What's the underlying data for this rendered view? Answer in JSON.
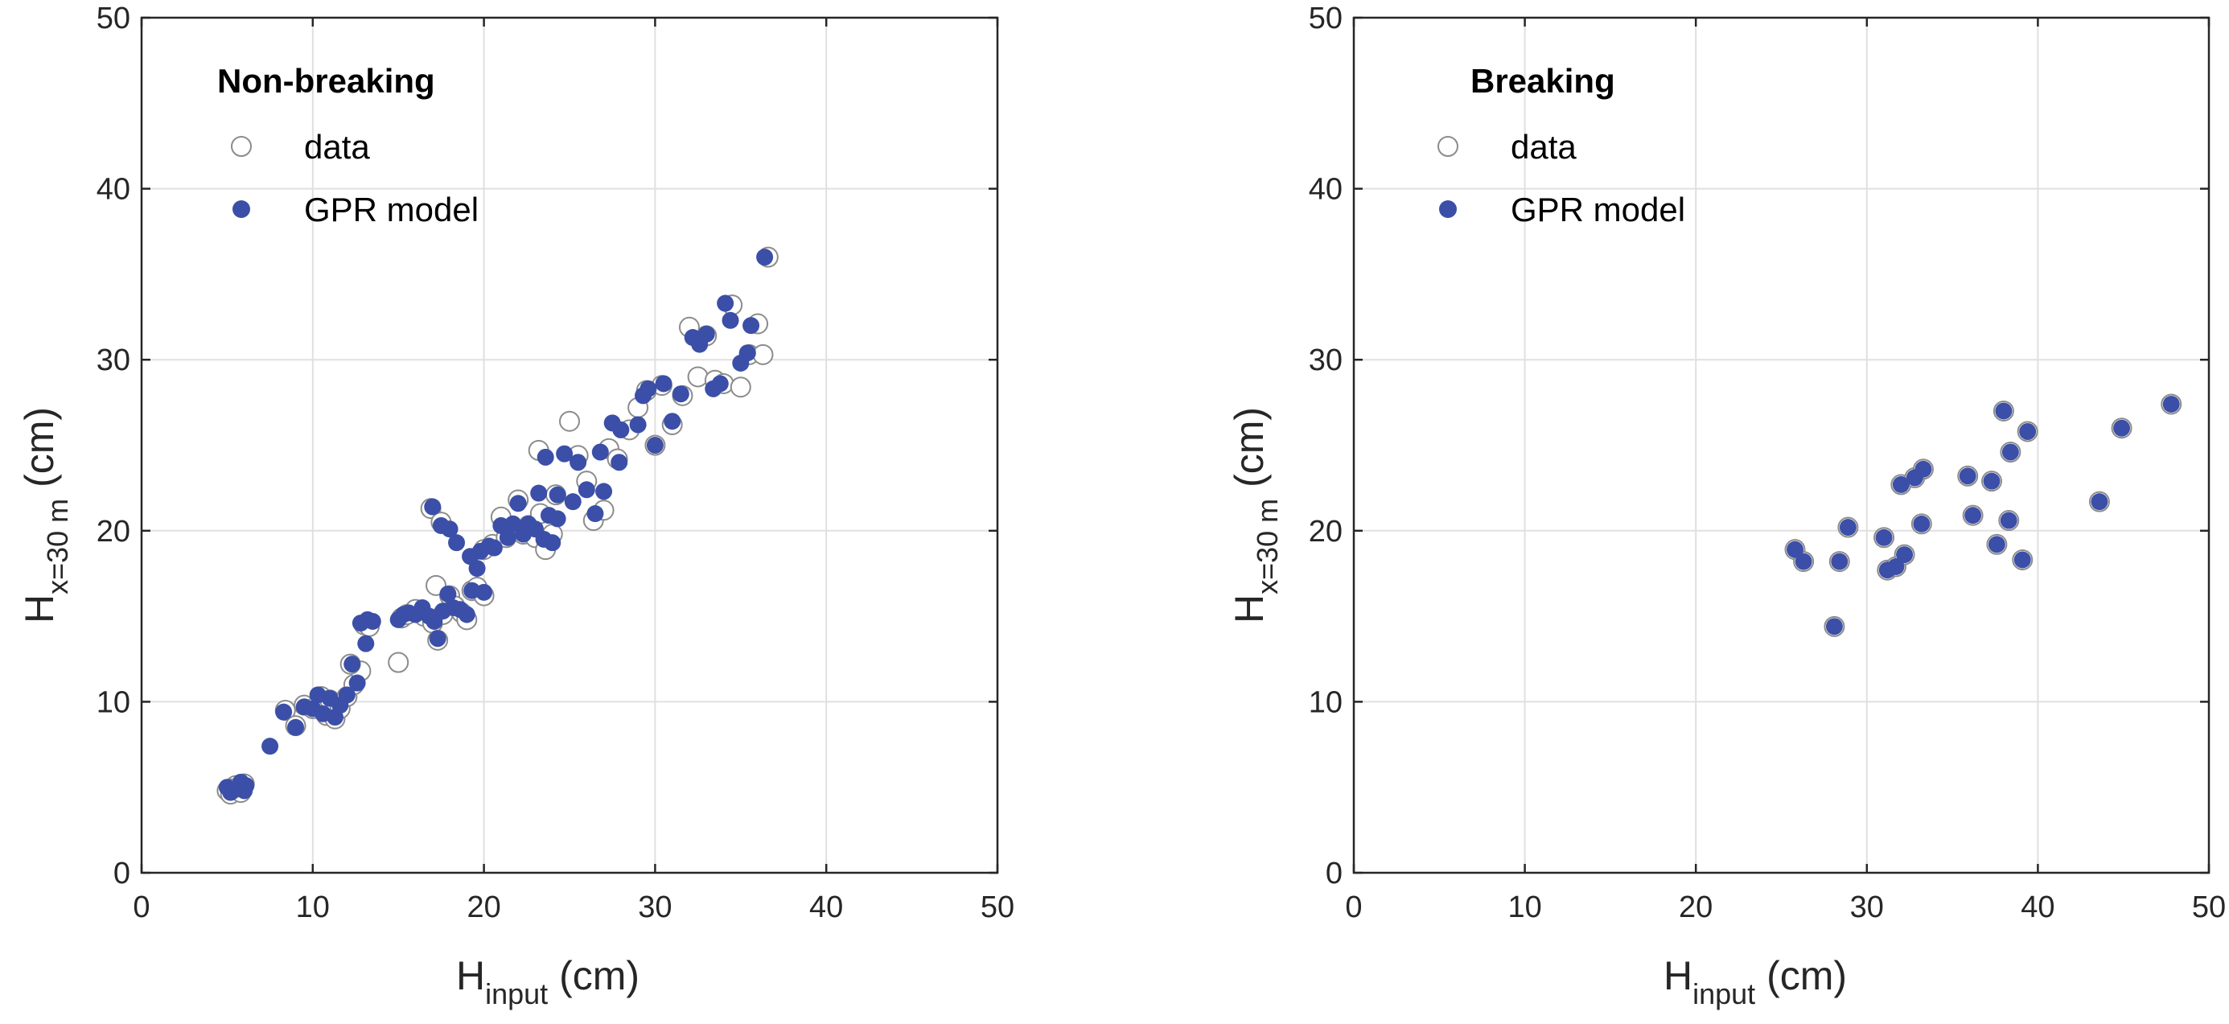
{
  "colors": {
    "data_edge": "#8c8c8c",
    "model_fill": "#3b4fa8",
    "axis": "#262626",
    "grid": "#e0e0e0"
  },
  "chart_data": [
    {
      "type": "scatter",
      "title": "",
      "legend_title": "Non-breaking",
      "legend_position": "top-left",
      "xlabel": {
        "main": "H",
        "sub": "input",
        "unit": " (cm)"
      },
      "ylabel": {
        "main": "H",
        "sub": "x=30 m",
        "unit": " (cm)"
      },
      "xlim": [
        0,
        50
      ],
      "ylim": [
        0,
        50
      ],
      "xticks": [
        "0",
        "10",
        "20",
        "30",
        "40",
        "50"
      ],
      "yticks": [
        "0",
        "10",
        "20",
        "30",
        "40",
        "50"
      ],
      "grid": true,
      "series": [
        {
          "name": "data",
          "marker": "open-circle",
          "points": [
            [
              5,
              4.8
            ],
            [
              5.2,
              4.6
            ],
            [
              5.5,
              5.1
            ],
            [
              5.8,
              4.7
            ],
            [
              6,
              5.2
            ],
            [
              5.3,
              4.9
            ],
            [
              8.4,
              9.5
            ],
            [
              9,
              8.6
            ],
            [
              9.5,
              9.8
            ],
            [
              10,
              9.6
            ],
            [
              10.5,
              10.3
            ],
            [
              10.8,
              9.2
            ],
            [
              11,
              10.1
            ],
            [
              11.3,
              9.0
            ],
            [
              11.6,
              9.6
            ],
            [
              12,
              10.3
            ],
            [
              12.4,
              11
            ],
            [
              12.8,
              11.8
            ],
            [
              12.2,
              12.2
            ],
            [
              13,
              14.5
            ],
            [
              13.3,
              14.4
            ],
            [
              15,
              12.3
            ],
            [
              15.2,
              14.9
            ],
            [
              15.5,
              15.1
            ],
            [
              16,
              15.4
            ],
            [
              16.5,
              15
            ],
            [
              17,
              14.6
            ],
            [
              17.2,
              16.8
            ],
            [
              17.3,
              13.6
            ],
            [
              17.6,
              15.1
            ],
            [
              18,
              16.2
            ],
            [
              18.3,
              15.6
            ],
            [
              18.7,
              15.2
            ],
            [
              19,
              14.8
            ],
            [
              19.3,
              16.5
            ],
            [
              19.6,
              16.7
            ],
            [
              20,
              16.2
            ],
            [
              16.9,
              21.3
            ],
            [
              17.5,
              20.5
            ],
            [
              20,
              18.9
            ],
            [
              20.5,
              19.2
            ],
            [
              21,
              20.8
            ],
            [
              21.3,
              19.6
            ],
            [
              21.6,
              20.1
            ],
            [
              22,
              21.8
            ],
            [
              22.3,
              19.8
            ],
            [
              22.6,
              20.3
            ],
            [
              23,
              19.6
            ],
            [
              23.3,
              21
            ],
            [
              23.6,
              18.9
            ],
            [
              24,
              19.8
            ],
            [
              23.2,
              24.7
            ],
            [
              24.2,
              22.1
            ],
            [
              25,
              26.4
            ],
            [
              25.5,
              24.4
            ],
            [
              26,
              22.9
            ],
            [
              26.4,
              20.6
            ],
            [
              27,
              21.2
            ],
            [
              27.3,
              24.8
            ],
            [
              27.8,
              24.2
            ],
            [
              28.5,
              25.9
            ],
            [
              29,
              27.2
            ],
            [
              29.5,
              28.2
            ],
            [
              30,
              25.0
            ],
            [
              30.4,
              28.5
            ],
            [
              31,
              26.2
            ],
            [
              31.6,
              27.9
            ],
            [
              32,
              31.9
            ],
            [
              32.5,
              29.0
            ],
            [
              33,
              31.4
            ],
            [
              33.5,
              28.8
            ],
            [
              34,
              28.6
            ],
            [
              34.5,
              33.2
            ],
            [
              35,
              28.4
            ],
            [
              35.5,
              30.3
            ],
            [
              36,
              32.1
            ],
            [
              36.3,
              30.3
            ],
            [
              36.6,
              36
            ]
          ]
        },
        {
          "name": "GPR model",
          "marker": "filled-circle",
          "points": [
            [
              5,
              5
            ],
            [
              5.2,
              4.7
            ],
            [
              5.5,
              4.9
            ],
            [
              5.8,
              5.3
            ],
            [
              6,
              4.8
            ],
            [
              6.1,
              5.1
            ],
            [
              7.5,
              7.4
            ],
            [
              8.3,
              9.4
            ],
            [
              9,
              8.5
            ],
            [
              9.5,
              9.7
            ],
            [
              10,
              9.6
            ],
            [
              10.3,
              10.4
            ],
            [
              10.6,
              9.3
            ],
            [
              11,
              10.2
            ],
            [
              11.3,
              9.1
            ],
            [
              11.6,
              9.8
            ],
            [
              12,
              10.4
            ],
            [
              12.3,
              12.2
            ],
            [
              12.6,
              11.1
            ],
            [
              12.8,
              14.6
            ],
            [
              13.2,
              14.8
            ],
            [
              13.5,
              14.7
            ],
            [
              13.1,
              13.4
            ],
            [
              15,
              14.8
            ],
            [
              15.3,
              15.1
            ],
            [
              15.6,
              15.2
            ],
            [
              16,
              15.1
            ],
            [
              16.4,
              15.5
            ],
            [
              16.8,
              15.0
            ],
            [
              17.1,
              14.7
            ],
            [
              17.3,
              13.7
            ],
            [
              17.6,
              15.3
            ],
            [
              17.9,
              16.3
            ],
            [
              18.2,
              15.5
            ],
            [
              18.6,
              15.4
            ],
            [
              19,
              15.1
            ],
            [
              19.3,
              16.5
            ],
            [
              19.6,
              17.8
            ],
            [
              20,
              16.4
            ],
            [
              17,
              21.4
            ],
            [
              17.5,
              20.3
            ],
            [
              18,
              20.1
            ],
            [
              18.4,
              19.3
            ],
            [
              19.2,
              18.5
            ],
            [
              19.8,
              18.8
            ],
            [
              20.3,
              19.1
            ],
            [
              20.6,
              19.0
            ],
            [
              21,
              20.3
            ],
            [
              21.4,
              19.6
            ],
            [
              21.7,
              20.4
            ],
            [
              22,
              21.6
            ],
            [
              22.3,
              19.8
            ],
            [
              22.6,
              20.4
            ],
            [
              23,
              20.1
            ],
            [
              23.2,
              22.2
            ],
            [
              23.5,
              19.5
            ],
            [
              23.8,
              20.9
            ],
            [
              24,
              19.3
            ],
            [
              24.3,
              20.7
            ],
            [
              23.6,
              24.3
            ],
            [
              24.3,
              22.1
            ],
            [
              24.7,
              24.5
            ],
            [
              25.2,
              21.7
            ],
            [
              25.5,
              24.0
            ],
            [
              26,
              22.4
            ],
            [
              26.5,
              21.0
            ],
            [
              27,
              22.3
            ],
            [
              26.8,
              24.6
            ],
            [
              27.5,
              26.3
            ],
            [
              28,
              25.9
            ],
            [
              27.9,
              24.0
            ],
            [
              29,
              26.2
            ],
            [
              29.3,
              27.9
            ],
            [
              29.6,
              28.3
            ],
            [
              30,
              25.0
            ],
            [
              30.5,
              28.6
            ],
            [
              31,
              26.4
            ],
            [
              31.5,
              28.0
            ],
            [
              32.2,
              31.3
            ],
            [
              32.6,
              30.9
            ],
            [
              33,
              31.5
            ],
            [
              33.4,
              28.3
            ],
            [
              33.8,
              28.6
            ],
            [
              34.1,
              33.3
            ],
            [
              34.4,
              32.3
            ],
            [
              35,
              29.8
            ],
            [
              35.4,
              30.4
            ],
            [
              35.6,
              32.0
            ],
            [
              36.4,
              36
            ]
          ]
        }
      ]
    },
    {
      "type": "scatter",
      "title": "",
      "legend_title": "Breaking",
      "legend_position": "top-left",
      "xlabel": {
        "main": "H",
        "sub": "input",
        "unit": " (cm)"
      },
      "ylabel": {
        "main": "H",
        "sub": "x=30 m",
        "unit": " (cm)"
      },
      "xlim": [
        0,
        50
      ],
      "ylim": [
        0,
        50
      ],
      "xticks": [
        "0",
        "10",
        "20",
        "30",
        "40",
        "50"
      ],
      "yticks": [
        "0",
        "10",
        "20",
        "30",
        "40",
        "50"
      ],
      "grid": true,
      "series": [
        {
          "name": "data",
          "marker": "open-circle",
          "points": [
            [
              25.8,
              18.9
            ],
            [
              26.3,
              18.2
            ],
            [
              28.1,
              14.4
            ],
            [
              28.4,
              18.2
            ],
            [
              28.9,
              20.2
            ],
            [
              31,
              19.6
            ],
            [
              31.2,
              17.7
            ],
            [
              31.7,
              17.9
            ],
            [
              32,
              22.7
            ],
            [
              32.2,
              18.6
            ],
            [
              32.8,
              23.1
            ],
            [
              33.2,
              20.4
            ],
            [
              33.3,
              23.6
            ],
            [
              35.9,
              23.2
            ],
            [
              36.2,
              20.9
            ],
            [
              37.3,
              22.9
            ],
            [
              37.6,
              19.2
            ],
            [
              38,
              27
            ],
            [
              38.3,
              20.6
            ],
            [
              38.4,
              24.6
            ],
            [
              39.1,
              18.3
            ],
            [
              39.4,
              25.8
            ],
            [
              43.6,
              21.7
            ],
            [
              44.9,
              26
            ],
            [
              47.8,
              27.4
            ]
          ]
        },
        {
          "name": "GPR model",
          "marker": "filled-circle",
          "points": [
            [
              25.8,
              18.9
            ],
            [
              26.3,
              18.2
            ],
            [
              28.1,
              14.4
            ],
            [
              28.4,
              18.2
            ],
            [
              28.9,
              20.2
            ],
            [
              31,
              19.6
            ],
            [
              31.2,
              17.7
            ],
            [
              31.7,
              17.9
            ],
            [
              32,
              22.7
            ],
            [
              32.2,
              18.6
            ],
            [
              32.8,
              23.1
            ],
            [
              33.2,
              20.4
            ],
            [
              33.3,
              23.6
            ],
            [
              35.9,
              23.2
            ],
            [
              36.2,
              20.9
            ],
            [
              37.3,
              22.9
            ],
            [
              37.6,
              19.2
            ],
            [
              38,
              27
            ],
            [
              38.3,
              20.6
            ],
            [
              38.4,
              24.6
            ],
            [
              39.1,
              18.3
            ],
            [
              39.4,
              25.8
            ],
            [
              43.6,
              21.7
            ],
            [
              44.9,
              26
            ],
            [
              47.8,
              27.4
            ]
          ]
        }
      ]
    }
  ]
}
